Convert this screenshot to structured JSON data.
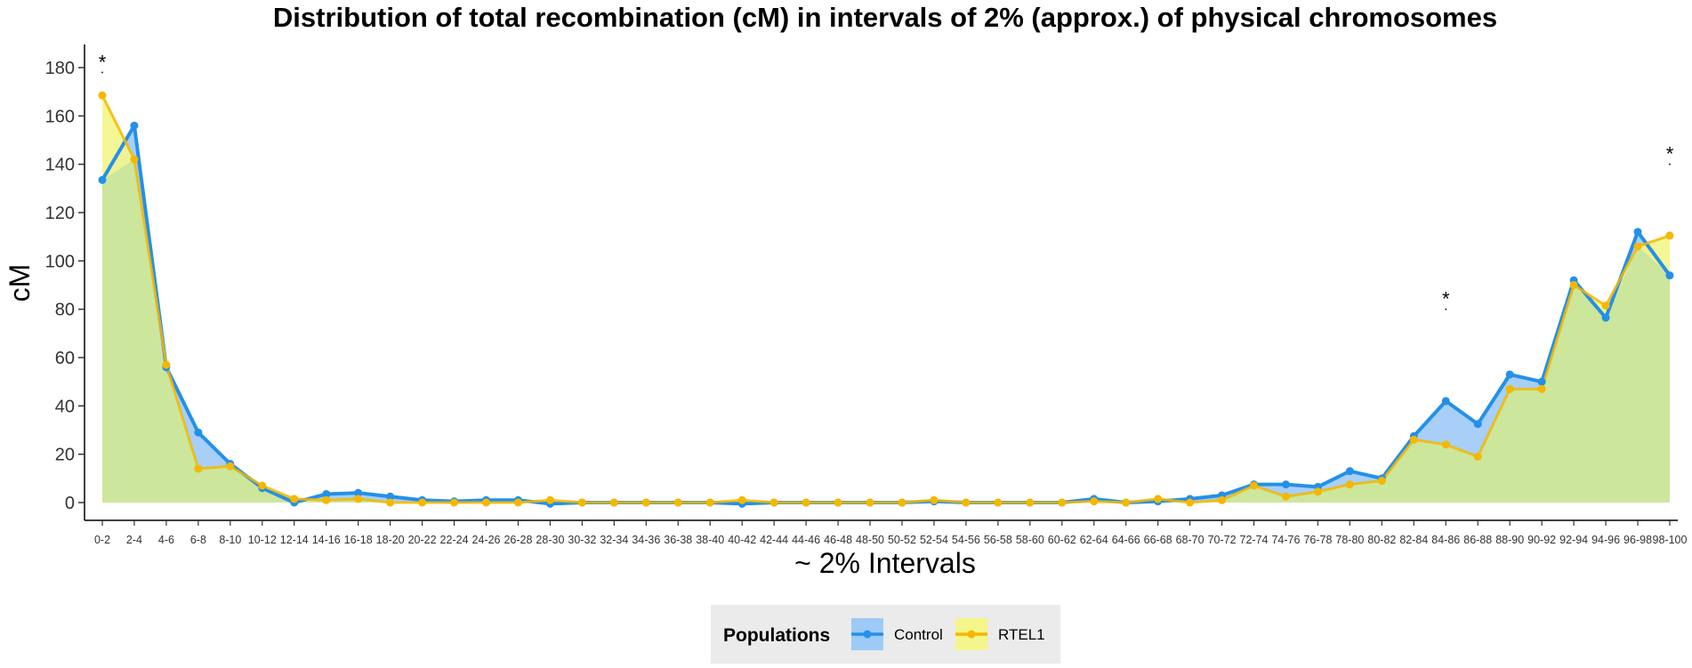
{
  "chart_data": {
    "type": "area",
    "title": "Distribution of total recombination (cM) in intervals of 2% (approx.)  of physical chromosomes",
    "xlabel": "~ 2% Intervals",
    "ylabel": "cM",
    "ylim": [
      -8,
      188
    ],
    "yticks": [
      0,
      20,
      40,
      60,
      80,
      100,
      120,
      140,
      160,
      180
    ],
    "categories": [
      "0-2",
      "2-4",
      "4-6",
      "6-8",
      "8-10",
      "10-12",
      "12-14",
      "14-16",
      "16-18",
      "18-20",
      "20-22",
      "22-24",
      "24-26",
      "26-28",
      "28-30",
      "30-32",
      "32-34",
      "34-36",
      "36-38",
      "38-40",
      "40-42",
      "42-44",
      "44-46",
      "46-48",
      "48-50",
      "50-52",
      "52-54",
      "54-56",
      "56-58",
      "58-60",
      "60-62",
      "62-64",
      "64-66",
      "66-68",
      "68-70",
      "70-72",
      "72-74",
      "74-76",
      "76-78",
      "78-80",
      "80-82",
      "82-84",
      "84-86",
      "86-88",
      "88-90",
      "90-92",
      "92-94",
      "94-96",
      "96-98",
      "98-100"
    ],
    "series": [
      {
        "name": "Control",
        "color": "#2490E8",
        "fill": "#9DCAF7",
        "values": [
          133.5,
          156,
          56,
          29,
          16,
          6,
          0,
          3.5,
          4,
          2.5,
          1,
          0.5,
          1,
          1,
          -0.5,
          0,
          0,
          0,
          0,
          0,
          -0.5,
          0,
          0,
          0,
          0,
          0,
          0.5,
          0,
          0,
          0,
          0,
          1.5,
          0,
          0.5,
          1.5,
          3,
          7.5,
          7.5,
          6.5,
          13,
          10,
          27.5,
          42,
          32.5,
          53,
          50,
          92,
          76.5,
          112,
          94
        ]
      },
      {
        "name": "RTEL1",
        "color": "#F5B700",
        "fill": "#F4F58A",
        "values": [
          168.5,
          142,
          57,
          14,
          15,
          7,
          1.5,
          1,
          1.5,
          0,
          0,
          0,
          0,
          0,
          1,
          0,
          0,
          0,
          0,
          0,
          1,
          0,
          0,
          0,
          0,
          0,
          1,
          0,
          0,
          0,
          0,
          0.5,
          0,
          1.5,
          0,
          1,
          7,
          2.5,
          4.5,
          7.5,
          9,
          26,
          24,
          19,
          47,
          47,
          90,
          81.5,
          106,
          110.5
        ]
      }
    ],
    "overlap_fill": "#CCE69C",
    "significance_markers": [
      {
        "category": "0-2",
        "label": "*",
        "y": 178
      },
      {
        "category": "84-86",
        "label": "*",
        "y": 80
      },
      {
        "category": "98-100",
        "label": "*",
        "y": 140
      }
    ],
    "grid": false,
    "legend": {
      "position": "bottom",
      "title": "Populations",
      "background": "#EBEBEB"
    }
  }
}
